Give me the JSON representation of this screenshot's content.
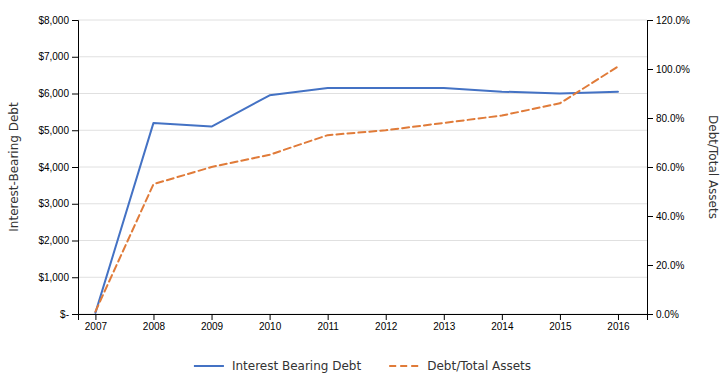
{
  "chart_data": {
    "type": "line",
    "x": [
      2007,
      2008,
      2009,
      2010,
      2011,
      2012,
      2013,
      2014,
      2015,
      2016
    ],
    "xlim": [
      2006.7,
      2016.5
    ],
    "xticks": [
      2007,
      2008,
      2009,
      2010,
      2011,
      2012,
      2013,
      2014,
      2015,
      2016
    ],
    "ylabel": "Interest-Bearing Debt",
    "y2label": "Debt/Total Assets",
    "ylim": [
      0,
      8000
    ],
    "yticks": [
      {
        "value": 0,
        "label": "$-"
      },
      {
        "value": 1000,
        "label": "$1,000"
      },
      {
        "value": 2000,
        "label": "$2,000"
      },
      {
        "value": 3000,
        "label": "$3,000"
      },
      {
        "value": 4000,
        "label": "$4,000"
      },
      {
        "value": 5000,
        "label": "$5,000"
      },
      {
        "value": 6000,
        "label": "$6,000"
      },
      {
        "value": 7000,
        "label": "$7,000"
      },
      {
        "value": 8000,
        "label": "$8,000"
      }
    ],
    "y2lim": [
      0.0,
      1.2
    ],
    "y2ticks": [
      {
        "value": 0.0,
        "label": "0.0%"
      },
      {
        "value": 0.2,
        "label": "20.0%"
      },
      {
        "value": 0.4,
        "label": "40.0%"
      },
      {
        "value": 0.6,
        "label": "60.0%"
      },
      {
        "value": 0.8,
        "label": "80.0%"
      },
      {
        "value": 1.0,
        "label": "100.0%"
      },
      {
        "value": 1.2,
        "label": "120.0%"
      }
    ],
    "grid": true,
    "legend": "bottom",
    "series": [
      {
        "name": "Interest Bearing Debt",
        "color": "#4472C4",
        "line_style": "solid",
        "values": [
          30,
          5200,
          5100,
          5950,
          6150,
          6150,
          6150,
          6050,
          6000,
          6050
        ]
      },
      {
        "name": "Debt/Total Assets",
        "color": "#E07B39",
        "line_style": "dashed",
        "axis": "y2",
        "values": [
          0.01,
          0.53,
          0.6,
          0.65,
          0.73,
          0.75,
          0.78,
          0.81,
          0.86,
          1.01
        ]
      }
    ]
  }
}
